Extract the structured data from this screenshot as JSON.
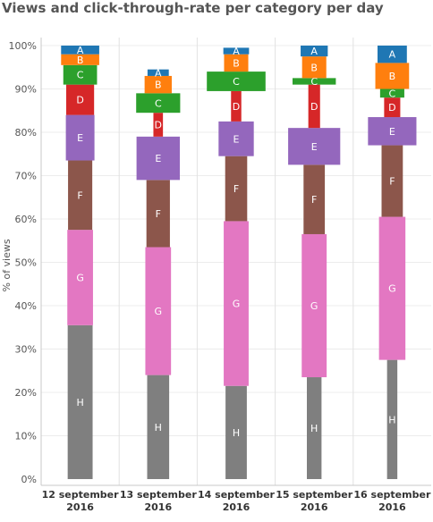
{
  "chart_data": {
    "type": "bar",
    "title": "Views and click-through-rate per category per day",
    "ylabel": "% of views",
    "xlabel": "",
    "ylim": [
      0,
      100
    ],
    "y_ticks": [
      "0%",
      "10%",
      "20%",
      "30%",
      "40%",
      "50%",
      "60%",
      "70%",
      "80%",
      "90%",
      "100%"
    ],
    "grid": true,
    "legend": "none",
    "categories": [
      [
        "12 september",
        "2016"
      ],
      [
        "13 september",
        "2016"
      ],
      [
        "14 september",
        "2016"
      ],
      [
        "15 september",
        "2016"
      ],
      [
        "16 september",
        "2016"
      ]
    ],
    "series": [
      {
        "name": "H",
        "color": "#7f7f7f",
        "values": [
          35.5,
          24.0,
          21.5,
          23.5,
          27.5
        ],
        "ctr_width": [
          0.34,
          0.3,
          0.29,
          0.2,
          0.14
        ]
      },
      {
        "name": "G",
        "color": "#e377c2",
        "values": [
          22.0,
          29.5,
          38.0,
          33.0,
          33.0
        ],
        "ctr_width": [
          0.35,
          0.35,
          0.34,
          0.34,
          0.36
        ]
      },
      {
        "name": "F",
        "color": "#8c564b",
        "values": [
          16.0,
          15.5,
          15.0,
          16.0,
          16.5
        ],
        "ctr_width": [
          0.33,
          0.32,
          0.3,
          0.29,
          0.29
        ]
      },
      {
        "name": "E",
        "color": "#9467bd",
        "values": [
          10.5,
          10.0,
          8.0,
          8.5,
          6.5
        ],
        "ctr_width": [
          0.39,
          0.59,
          0.48,
          0.71,
          0.66
        ]
      },
      {
        "name": "D",
        "color": "#d62728",
        "values": [
          7.0,
          5.5,
          7.0,
          10.0,
          4.5
        ],
        "ctr_width": [
          0.38,
          0.13,
          0.14,
          0.16,
          0.22
        ]
      },
      {
        "name": "C",
        "color": "#2ca02c",
        "values": [
          4.5,
          4.5,
          4.5,
          1.5,
          2.0
        ],
        "ctr_width": [
          0.46,
          0.6,
          0.8,
          0.59,
          0.33
        ]
      },
      {
        "name": "B",
        "color": "#ff7f0e",
        "values": [
          2.5,
          4.0,
          4.0,
          5.0,
          6.0
        ],
        "ctr_width": [
          0.52,
          0.37,
          0.33,
          0.33,
          0.46
        ]
      },
      {
        "name": "A",
        "color": "#1f77b4",
        "values": [
          2.0,
          1.5,
          1.5,
          2.5,
          4.0
        ],
        "ctr_width": [
          0.52,
          0.29,
          0.35,
          0.37,
          0.4
        ]
      }
    ]
  }
}
